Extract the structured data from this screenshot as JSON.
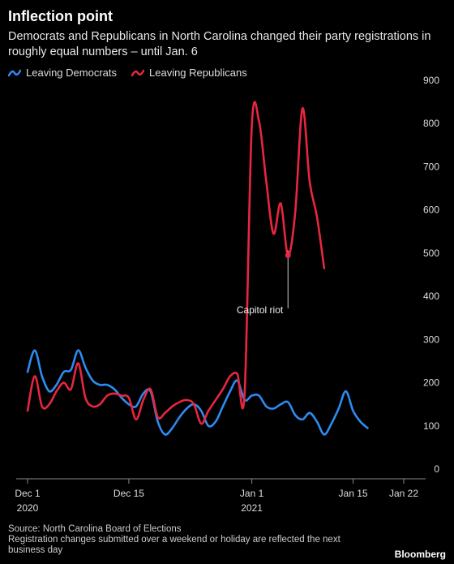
{
  "header": {
    "title": "Inflection point",
    "subtitle": "Democrats and Republicans in North Carolina changed their party registrations in roughly equal numbers – until Jan. 6"
  },
  "legend": {
    "items": [
      {
        "label": "Leaving Democrats",
        "color": "#2e8bf0"
      },
      {
        "label": "Leaving Republicans",
        "color": "#e8263f"
      }
    ]
  },
  "footer": {
    "source": "Source: North Carolina Board of Elections",
    "note": "Registration changes submitted over a weekend or holiday are reflected the next business day",
    "brand": "Bloomberg"
  },
  "chart_data": {
    "type": "line",
    "title": "Inflection point",
    "ylim": [
      0,
      900
    ],
    "yticks": [
      0,
      100,
      200,
      300,
      400,
      500,
      600,
      700,
      800,
      900
    ],
    "grid": false,
    "legend_position": "top-left",
    "xticks": [
      {
        "date": "2020-12-01",
        "label": "Dec 1",
        "sublabel": "2020"
      },
      {
        "date": "2020-12-15",
        "label": "Dec 15",
        "sublabel": ""
      },
      {
        "date": "2021-01-01",
        "label": "Jan 1",
        "sublabel": "2021"
      },
      {
        "date": "2021-01-15",
        "label": "Jan 15",
        "sublabel": ""
      },
      {
        "date": "2021-01-22",
        "label": "Jan 22",
        "sublabel": ""
      }
    ],
    "annotation": {
      "label": "Capitol riot",
      "date": "2021-01-06",
      "series": "Leaving Republicans"
    },
    "series": [
      {
        "name": "Leaving Democrats",
        "color": "#2e8bf0",
        "points": [
          [
            "2020-12-01",
            240
          ],
          [
            "2020-12-02",
            290
          ],
          [
            "2020-12-03",
            230
          ],
          [
            "2020-12-04",
            195
          ],
          [
            "2020-12-05",
            210
          ],
          [
            "2020-12-06",
            240
          ],
          [
            "2020-12-07",
            245
          ],
          [
            "2020-12-08",
            290
          ],
          [
            "2020-12-09",
            250
          ],
          [
            "2020-12-10",
            220
          ],
          [
            "2020-12-11",
            210
          ],
          [
            "2020-12-12",
            210
          ],
          [
            "2020-12-13",
            200
          ],
          [
            "2020-12-14",
            180
          ],
          [
            "2020-12-15",
            165
          ],
          [
            "2020-12-16",
            160
          ],
          [
            "2020-12-17",
            190
          ],
          [
            "2020-12-18",
            195
          ],
          [
            "2020-12-19",
            125
          ],
          [
            "2020-12-20",
            95
          ],
          [
            "2020-12-21",
            110
          ],
          [
            "2020-12-22",
            135
          ],
          [
            "2020-12-23",
            155
          ],
          [
            "2020-12-24",
            165
          ],
          [
            "2020-12-25",
            150
          ],
          [
            "2020-12-26",
            115
          ],
          [
            "2020-12-27",
            125
          ],
          [
            "2020-12-28",
            160
          ],
          [
            "2020-12-29",
            195
          ],
          [
            "2020-12-30",
            220
          ],
          [
            "2020-12-31",
            175
          ],
          [
            "2021-01-01",
            185
          ],
          [
            "2021-01-02",
            185
          ],
          [
            "2021-01-03",
            160
          ],
          [
            "2021-01-04",
            155
          ],
          [
            "2021-01-05",
            165
          ],
          [
            "2021-01-06",
            170
          ],
          [
            "2021-01-07",
            140
          ],
          [
            "2021-01-08",
            130
          ],
          [
            "2021-01-09",
            145
          ],
          [
            "2021-01-10",
            125
          ],
          [
            "2021-01-11",
            95
          ],
          [
            "2021-01-12",
            120
          ],
          [
            "2021-01-13",
            155
          ],
          [
            "2021-01-14",
            195
          ],
          [
            "2021-01-15",
            150
          ],
          [
            "2021-01-16",
            125
          ],
          [
            "2021-01-17",
            110
          ]
        ]
      },
      {
        "name": "Leaving Republicans",
        "color": "#e8263f",
        "points": [
          [
            "2020-12-01",
            150
          ],
          [
            "2020-12-02",
            230
          ],
          [
            "2020-12-03",
            160
          ],
          [
            "2020-12-04",
            165
          ],
          [
            "2020-12-05",
            195
          ],
          [
            "2020-12-06",
            215
          ],
          [
            "2020-12-07",
            200
          ],
          [
            "2020-12-08",
            260
          ],
          [
            "2020-12-09",
            180
          ],
          [
            "2020-12-10",
            160
          ],
          [
            "2020-12-11",
            165
          ],
          [
            "2020-12-12",
            185
          ],
          [
            "2020-12-13",
            190
          ],
          [
            "2020-12-14",
            185
          ],
          [
            "2020-12-15",
            180
          ],
          [
            "2020-12-16",
            130
          ],
          [
            "2020-12-17",
            175
          ],
          [
            "2020-12-18",
            200
          ],
          [
            "2020-12-19",
            135
          ],
          [
            "2020-12-20",
            145
          ],
          [
            "2020-12-21",
            160
          ],
          [
            "2020-12-22",
            170
          ],
          [
            "2020-12-23",
            175
          ],
          [
            "2020-12-24",
            165
          ],
          [
            "2020-12-25",
            120
          ],
          [
            "2020-12-26",
            150
          ],
          [
            "2020-12-27",
            175
          ],
          [
            "2020-12-28",
            200
          ],
          [
            "2020-12-29",
            230
          ],
          [
            "2020-12-30",
            235
          ],
          [
            "2020-12-31",
            190
          ],
          [
            "2021-01-01",
            810
          ],
          [
            "2021-01-02",
            820
          ],
          [
            "2021-01-03",
            680
          ],
          [
            "2021-01-04",
            560
          ],
          [
            "2021-01-05",
            630
          ],
          [
            "2021-01-06",
            510
          ],
          [
            "2021-01-07",
            610
          ],
          [
            "2021-01-08",
            850
          ],
          [
            "2021-01-09",
            680
          ],
          [
            "2021-01-10",
            600
          ],
          [
            "2021-01-11",
            480
          ]
        ]
      }
    ]
  }
}
